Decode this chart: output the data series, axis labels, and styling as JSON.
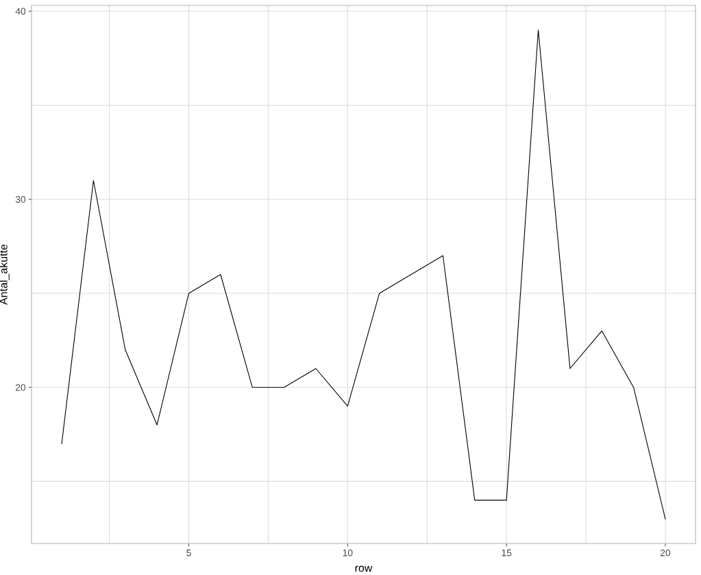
{
  "chart_data": {
    "type": "line",
    "xlabel": "row",
    "ylabel": "Antal_akutte",
    "x": [
      1,
      2,
      3,
      4,
      5,
      6,
      7,
      8,
      9,
      10,
      11,
      12,
      13,
      14,
      15,
      16,
      17,
      18,
      19,
      20
    ],
    "series": [
      {
        "color": "#000000",
        "values": [
          17,
          31,
          22,
          18,
          25,
          26,
          20,
          20,
          21,
          19,
          25,
          26,
          27,
          14,
          14,
          39,
          21,
          23,
          20,
          13
        ]
      }
    ],
    "xlim": [
      0.05,
      20.95
    ],
    "ylim": [
      11.7,
      40.3
    ],
    "xticks": [
      {
        "value": 2.5,
        "label": null
      },
      5,
      {
        "value": 7.5,
        "label": null
      },
      10,
      {
        "value": 12.5,
        "label": null
      },
      15,
      {
        "value": 17.5,
        "label": null
      },
      20
    ],
    "yticks": [
      {
        "value": 15,
        "label": null
      },
      20,
      {
        "value": 25,
        "label": null
      },
      30,
      {
        "value": 35,
        "label": null
      },
      40
    ],
    "grid": true,
    "marker": "none",
    "line_style": "solid"
  }
}
